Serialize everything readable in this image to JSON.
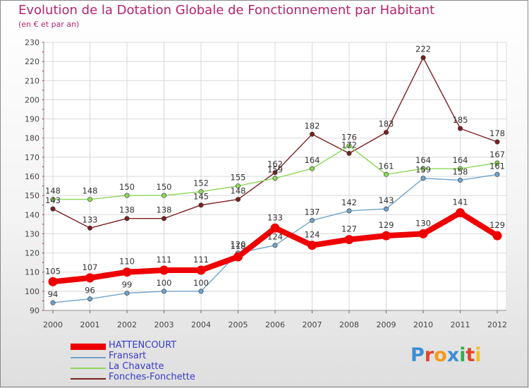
{
  "chart_data": {
    "type": "line",
    "title": "Evolution de la Dotation Globale de Fonctionnement par Habitant",
    "subtitle": "(en € et par an)",
    "xlabel": "",
    "ylabel": "",
    "ylim": [
      90,
      230
    ],
    "yticks": [
      90,
      100,
      110,
      120,
      130,
      140,
      150,
      160,
      170,
      180,
      190,
      200,
      210,
      220,
      230
    ],
    "categories": [
      "2000",
      "2001",
      "2002",
      "2003",
      "2004",
      "2005",
      "2006",
      "2007",
      "2008",
      "2009",
      "2010",
      "2011",
      "2012"
    ],
    "grid": true,
    "legend_position": "bottom-left",
    "series": [
      {
        "name": "Fonches-Fonchette",
        "color": "#7a1f1f",
        "values": [
          143,
          133,
          138,
          138,
          145,
          148,
          162,
          182,
          172,
          183,
          222,
          185,
          178
        ]
      },
      {
        "name": "La Chavatte",
        "color": "#8ed85a",
        "values": [
          148,
          148,
          150,
          150,
          152,
          155,
          159,
          164,
          176,
          161,
          164,
          164,
          167
        ]
      },
      {
        "name": "Fransart",
        "color": "#6fa3cc",
        "values": [
          94,
          96,
          99,
          100,
          100,
          120,
          124,
          137,
          142,
          143,
          159,
          158,
          161
        ]
      },
      {
        "name": "HATTENCOURT",
        "color": "#ee0000",
        "values": [
          105,
          107,
          110,
          111,
          111,
          118,
          133,
          124,
          127,
          129,
          130,
          141,
          129
        ]
      }
    ]
  },
  "legend": {
    "label_color": "#3a3acc",
    "items": [
      {
        "label": "HATTENCOURT",
        "color": "#ee0000"
      },
      {
        "label": "Fransart",
        "color": "#6fa3cc"
      },
      {
        "label": "La Chavatte",
        "color": "#8ed85a"
      },
      {
        "label": "Fonches-Fonchette",
        "color": "#7a1f1f"
      }
    ]
  },
  "logo": {
    "text": "Proxiti",
    "colors": [
      "#3b8fd6",
      "#e0452b",
      "#f39a1c",
      "#3b8fd6",
      "#2db34a",
      "#e0452b",
      "#f2c11d"
    ]
  }
}
